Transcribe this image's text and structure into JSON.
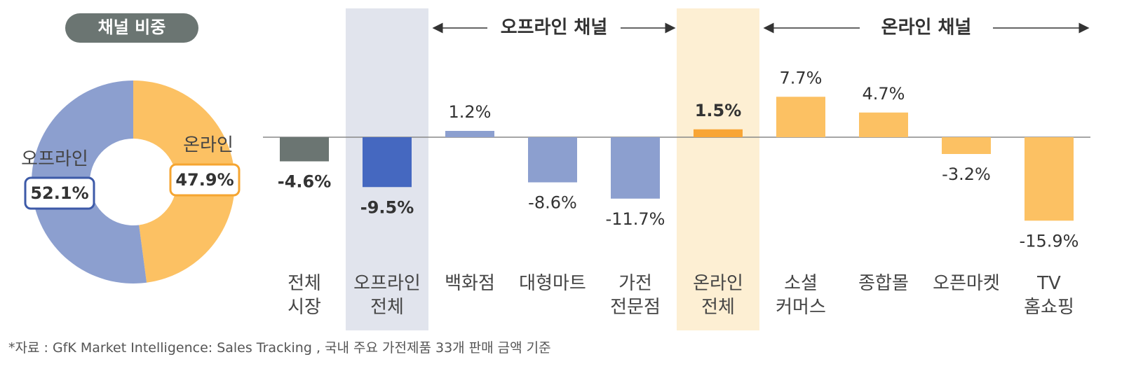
{
  "chart_data": [
    {
      "type": "donut",
      "title": "채널 비중",
      "categories": [
        "오프라인",
        "온라인"
      ],
      "values": [
        52.1,
        47.9
      ],
      "value_labels": [
        "52.1%",
        "47.9%"
      ],
      "colors": [
        "#8c9fcf",
        "#fcc163"
      ],
      "label_borders": [
        "#3d5aa8",
        "#f5a531"
      ]
    },
    {
      "type": "bar",
      "categories": [
        "전체\n시장",
        "오프라인\n전체",
        "백화점",
        "대형마트",
        "가전\n전문점",
        "온라인\n전체",
        "소셜\n커머스",
        "종합몰",
        "오픈마켓",
        "TV\n홈쇼핑"
      ],
      "values": [
        -4.6,
        -9.5,
        1.2,
        -8.6,
        -11.7,
        1.5,
        7.7,
        4.7,
        -3.2,
        -15.9
      ],
      "value_labels": [
        "-4.6%",
        "-9.5%",
        "1.2%",
        "-8.6%",
        "-11.7%",
        "1.5%",
        "7.7%",
        "4.7%",
        "-3.2%",
        "-15.9%"
      ],
      "colors": [
        "#6b7572",
        "#4568c0",
        "#8c9fcf",
        "#8c9fcf",
        "#8c9fcf",
        "#f8a535",
        "#fcc163",
        "#fcc163",
        "#fcc163",
        "#fcc163"
      ],
      "bold": [
        0,
        1,
        5
      ],
      "highlight": [
        {
          "index": 1,
          "color": "#e1e4ed"
        },
        {
          "index": 5,
          "color": "#fdefd3"
        }
      ],
      "groups": [
        {
          "label": "오프라인 채널",
          "from": 2,
          "to": 4
        },
        {
          "label": "온라인 채널",
          "from": 6,
          "to": 9
        }
      ],
      "ylim": [
        -20,
        12
      ]
    }
  ],
  "footnote": "*자료 : GfK Market Intelligence: Sales Tracking , 국내 주요 가전제품 33개 판매 금액 기준"
}
